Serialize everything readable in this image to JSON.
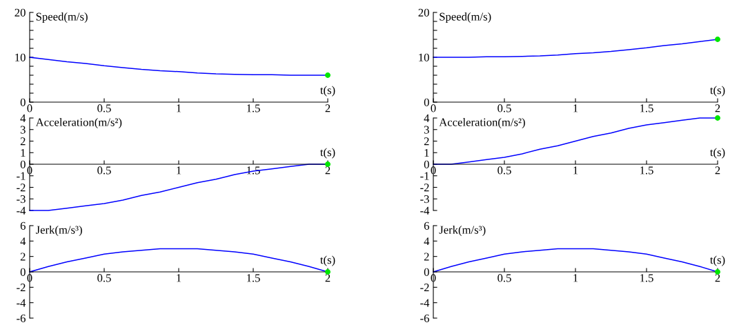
{
  "chart_data": [
    {
      "type": "line",
      "ylabel": "Speed(m/s)",
      "xlabel": "t(s)",
      "x": [
        0,
        0.125,
        0.25,
        0.375,
        0.5,
        0.625,
        0.75,
        0.875,
        1,
        1.125,
        1.25,
        1.375,
        1.5,
        1.625,
        1.75,
        1.875,
        2
      ],
      "xlim": [
        0,
        2
      ],
      "xticks": [
        0,
        0.5,
        1,
        1.5,
        2
      ],
      "ylim": [
        0,
        20
      ],
      "yticks": [
        0,
        {
          "value": 2,
          "label": null
        },
        {
          "value": 4,
          "label": null
        },
        {
          "value": 6,
          "label": null
        },
        {
          "value": 8,
          "label": null
        },
        10,
        {
          "value": 12,
          "label": null
        },
        {
          "value": 14,
          "label": null
        },
        {
          "value": 16,
          "label": null
        },
        {
          "value": 18,
          "label": null
        },
        20
      ],
      "series": [
        {
          "color": "#0000ff",
          "values": [
            10,
            9.5,
            9.0,
            8.6,
            8.1,
            7.7,
            7.3,
            7.0,
            6.8,
            6.5,
            6.3,
            6.2,
            6.1,
            6.1,
            6.0,
            6.0,
            6
          ]
        },
        {
          "type": "scatter",
          "color": "#00e600",
          "values": [
            null,
            null,
            null,
            null,
            null,
            null,
            null,
            null,
            null,
            null,
            null,
            null,
            null,
            null,
            null,
            null,
            6
          ]
        }
      ]
    },
    {
      "type": "line",
      "ylabel": "Speed(m/s)",
      "xlabel": "t(s)",
      "x": [
        0,
        0.125,
        0.25,
        0.375,
        0.5,
        0.625,
        0.75,
        0.875,
        1,
        1.125,
        1.25,
        1.375,
        1.5,
        1.625,
        1.75,
        1.875,
        2
      ],
      "xlim": [
        0,
        2
      ],
      "xticks": [
        0,
        0.5,
        1,
        1.5,
        2
      ],
      "ylim": [
        0,
        20
      ],
      "yticks": [
        0,
        {
          "value": 2,
          "label": null
        },
        {
          "value": 4,
          "label": null
        },
        {
          "value": 6,
          "label": null
        },
        {
          "value": 8,
          "label": null
        },
        10,
        {
          "value": 12,
          "label": null
        },
        {
          "value": 14,
          "label": null
        },
        {
          "value": 16,
          "label": null
        },
        {
          "value": 18,
          "label": null
        },
        20
      ],
      "series": [
        {
          "color": "#0000ff",
          "values": [
            10,
            10.0,
            10.0,
            10.1,
            10.1,
            10.2,
            10.3,
            10.5,
            10.8,
            11.0,
            11.3,
            11.7,
            12.1,
            12.6,
            13.0,
            13.5,
            14
          ]
        },
        {
          "type": "scatter",
          "color": "#00e600",
          "values": [
            null,
            null,
            null,
            null,
            null,
            null,
            null,
            null,
            null,
            null,
            null,
            null,
            null,
            null,
            null,
            null,
            14
          ]
        }
      ]
    },
    {
      "type": "line",
      "ylabel": "Acceleration(m/s²)",
      "xlabel": "t(s)",
      "x": [
        0,
        0.125,
        0.25,
        0.375,
        0.5,
        0.625,
        0.75,
        0.875,
        1,
        1.125,
        1.25,
        1.375,
        1.5,
        1.625,
        1.75,
        1.875,
        2
      ],
      "xlim": [
        0,
        2
      ],
      "xticks": [
        0,
        0.5,
        1,
        1.5,
        2
      ],
      "ylim": [
        -4,
        4
      ],
      "yticks": [
        -4,
        -3,
        -2,
        -1,
        0,
        1,
        2,
        3,
        4
      ],
      "series": [
        {
          "color": "#0000ff",
          "values": [
            -4,
            -4.0,
            -3.8,
            -3.6,
            -3.4,
            -3.1,
            -2.7,
            -2.4,
            -2,
            -1.6,
            -1.3,
            -0.9,
            -0.6,
            -0.4,
            -0.2,
            0.0,
            0
          ]
        },
        {
          "type": "scatter",
          "color": "#00e600",
          "values": [
            null,
            null,
            null,
            null,
            null,
            null,
            null,
            null,
            null,
            null,
            null,
            null,
            null,
            null,
            null,
            null,
            0
          ]
        }
      ]
    },
    {
      "type": "line",
      "ylabel": "Acceleration(m/s²)",
      "xlabel": "t(s)",
      "x": [
        0,
        0.125,
        0.25,
        0.375,
        0.5,
        0.625,
        0.75,
        0.875,
        1,
        1.125,
        1.25,
        1.375,
        1.5,
        1.625,
        1.75,
        1.875,
        2
      ],
      "xlim": [
        0,
        2
      ],
      "xticks": [
        0,
        0.5,
        1,
        1.5,
        2
      ],
      "ylim": [
        -4,
        4
      ],
      "yticks": [
        -4,
        -3,
        -2,
        -1,
        0,
        1,
        2,
        3,
        4
      ],
      "series": [
        {
          "color": "#0000ff",
          "values": [
            0,
            0.0,
            0.2,
            0.4,
            0.6,
            0.9,
            1.3,
            1.6,
            2,
            2.4,
            2.7,
            3.1,
            3.4,
            3.6,
            3.8,
            4.0,
            4
          ]
        },
        {
          "type": "scatter",
          "color": "#00e600",
          "values": [
            null,
            null,
            null,
            null,
            null,
            null,
            null,
            null,
            null,
            null,
            null,
            null,
            null,
            null,
            null,
            null,
            4
          ]
        }
      ]
    },
    {
      "type": "line",
      "ylabel": "Jerk(m/s³)",
      "xlabel": "t(s)",
      "x": [
        0,
        0.125,
        0.25,
        0.375,
        0.5,
        0.625,
        0.75,
        0.875,
        1,
        1.125,
        1.25,
        1.375,
        1.5,
        1.625,
        1.75,
        1.875,
        2
      ],
      "xlim": [
        0,
        2
      ],
      "xticks": [
        0,
        0.5,
        1,
        1.5,
        2
      ],
      "ylim": [
        -6,
        6
      ],
      "yticks": [
        -6,
        -4,
        -2,
        0,
        2,
        4,
        6
      ],
      "series": [
        {
          "color": "#0000ff",
          "values": [
            0,
            0.7,
            1.3,
            1.8,
            2.3,
            2.6,
            2.8,
            3.0,
            3,
            3.0,
            2.8,
            2.6,
            2.3,
            1.8,
            1.3,
            0.7,
            0
          ]
        },
        {
          "type": "scatter",
          "color": "#00e600",
          "values": [
            null,
            null,
            null,
            null,
            null,
            null,
            null,
            null,
            null,
            null,
            null,
            null,
            null,
            null,
            null,
            null,
            0
          ]
        }
      ]
    },
    {
      "type": "line",
      "ylabel": "Jerk(m/s³)",
      "xlabel": "t(s)",
      "x": [
        0,
        0.125,
        0.25,
        0.375,
        0.5,
        0.625,
        0.75,
        0.875,
        1,
        1.125,
        1.25,
        1.375,
        1.5,
        1.625,
        1.75,
        1.875,
        2
      ],
      "xlim": [
        0,
        2
      ],
      "xticks": [
        0,
        0.5,
        1,
        1.5,
        2
      ],
      "ylim": [
        -6,
        6
      ],
      "yticks": [
        -6,
        -4,
        -2,
        0,
        2,
        4,
        6
      ],
      "series": [
        {
          "color": "#0000ff",
          "values": [
            0,
            0.7,
            1.3,
            1.8,
            2.3,
            2.6,
            2.8,
            3.0,
            3,
            3.0,
            2.8,
            2.6,
            2.3,
            1.8,
            1.3,
            0.7,
            0
          ]
        },
        {
          "type": "scatter",
          "color": "#00e600",
          "values": [
            null,
            null,
            null,
            null,
            null,
            null,
            null,
            null,
            null,
            null,
            null,
            null,
            null,
            null,
            null,
            null,
            0
          ]
        }
      ]
    }
  ]
}
